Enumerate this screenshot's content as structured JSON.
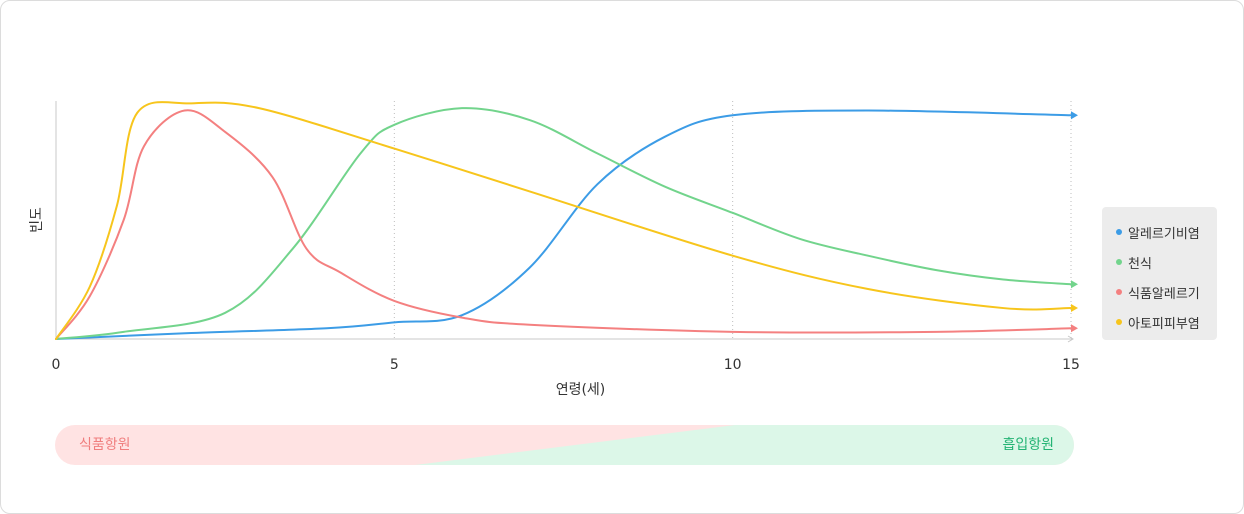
{
  "chart_data": {
    "type": "line",
    "xlabel": "연령(세)",
    "ylabel": "빈도",
    "xlim": [
      0,
      15
    ],
    "ylim": [
      0,
      100
    ],
    "xticks": [
      0,
      5,
      10,
      15
    ],
    "vertical_gridlines": [
      5,
      10,
      15
    ],
    "grid": "vertical dotted",
    "legend_position": "right",
    "series": [
      {
        "name": "알레르기비염",
        "color": "#3c9ce6",
        "points": [
          [
            0,
            0
          ],
          [
            2,
            2.5
          ],
          [
            4,
            4.5
          ],
          [
            5,
            7
          ],
          [
            6,
            10
          ],
          [
            7,
            30
          ],
          [
            8,
            65
          ],
          [
            9,
            85
          ],
          [
            10,
            94
          ],
          [
            12,
            96
          ],
          [
            15,
            94
          ]
        ]
      },
      {
        "name": "천식",
        "color": "#72d48c",
        "points": [
          [
            0,
            0
          ],
          [
            1,
            3
          ],
          [
            2.5,
            11
          ],
          [
            3.5,
            38
          ],
          [
            4.5,
            78
          ],
          [
            5,
            90
          ],
          [
            6,
            97
          ],
          [
            7,
            92
          ],
          [
            8,
            78
          ],
          [
            9,
            64
          ],
          [
            10,
            53
          ],
          [
            11,
            42
          ],
          [
            12,
            35
          ],
          [
            13,
            29
          ],
          [
            14,
            25
          ],
          [
            15,
            23
          ]
        ]
      },
      {
        "name": "식품알레르기",
        "color": "#f48080",
        "points": [
          [
            0,
            0
          ],
          [
            0.5,
            18
          ],
          [
            1,
            50
          ],
          [
            1.3,
            81
          ],
          [
            1.9,
            96
          ],
          [
            2.5,
            87
          ],
          [
            3.2,
            68
          ],
          [
            3.7,
            38
          ],
          [
            4.2,
            28
          ],
          [
            5,
            16
          ],
          [
            6,
            9
          ],
          [
            7,
            6
          ],
          [
            10,
            3
          ],
          [
            13,
            3
          ],
          [
            15,
            4.5
          ]
        ]
      },
      {
        "name": "아토피피부염",
        "color": "#f7c51c",
        "points": [
          [
            0,
            0
          ],
          [
            0.5,
            22
          ],
          [
            0.9,
            56
          ],
          [
            1.2,
            95
          ],
          [
            2,
            99
          ],
          [
            3,
            97
          ],
          [
            5,
            80
          ],
          [
            7,
            62
          ],
          [
            10,
            35
          ],
          [
            12,
            21
          ],
          [
            14,
            13
          ],
          [
            15,
            13
          ]
        ]
      }
    ]
  },
  "path_bar": {
    "left_label": "식품항원",
    "right_label": "흡입항원",
    "left_color": "#ffe3e3",
    "right_color": "#dcf7e8"
  }
}
